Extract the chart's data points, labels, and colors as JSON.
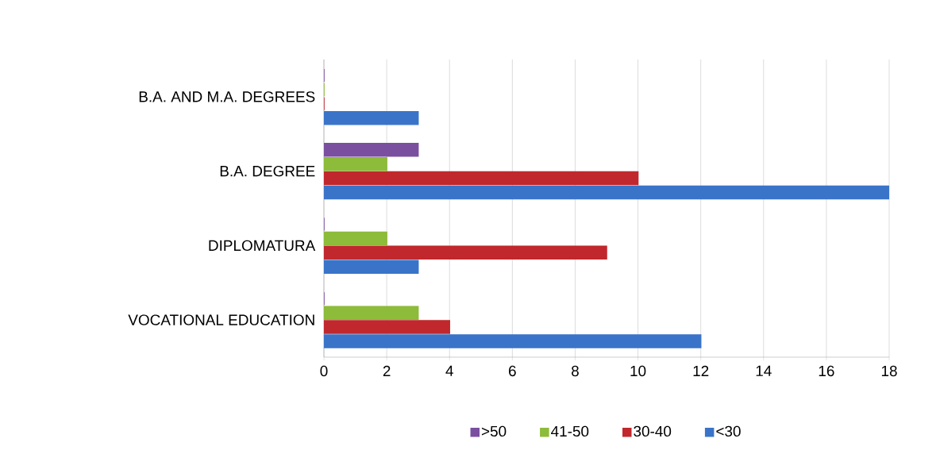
{
  "chart_data": {
    "type": "bar",
    "orientation": "horizontal",
    "categories": [
      "B.A. AND M.A. DEGREES",
      "B.A. DEGREE",
      "DIPLOMATURA",
      "VOCATIONAL EDUCATION"
    ],
    "series": [
      {
        "name": "<30",
        "color": "#3a74c9",
        "values": [
          3,
          18,
          3,
          12
        ]
      },
      {
        "name": "30-40",
        "color": "#c0282d",
        "values": [
          0,
          10,
          9,
          4
        ]
      },
      {
        "name": "41-50",
        "color": "#8dbb3a",
        "values": [
          0,
          2,
          2,
          3
        ]
      },
      {
        "name": ">50",
        "color": "#7b4fa0",
        "values": [
          0,
          3,
          0,
          0
        ]
      }
    ],
    "xlim": [
      0,
      18
    ],
    "xticks": [
      0,
      2,
      4,
      6,
      8,
      10,
      12,
      14,
      16,
      18
    ],
    "grid": "x",
    "legend": "bottom"
  }
}
